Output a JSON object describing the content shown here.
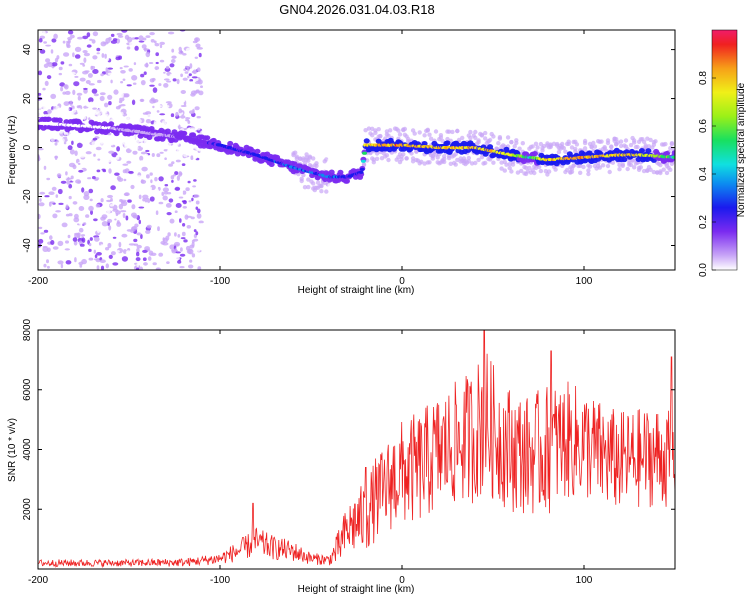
{
  "figure_title": "GN04.2026.031.04.03.R18",
  "chart_data": [
    {
      "type": "heatmap",
      "panel": "spectrogram",
      "xlabel": "Height of straight line (km)",
      "ylabel": "Frequency (Hz)",
      "xlim": [
        -200,
        150
      ],
      "ylim": [
        -50,
        48
      ],
      "x_ticks": [
        -200,
        -100,
        0,
        100
      ],
      "x_tick_labels": [
        "-200",
        "-100",
        "0",
        "100"
      ],
      "y_ticks": [
        -40,
        -20,
        0,
        20,
        40
      ],
      "y_tick_labels": [
        "-40",
        "-20",
        "0",
        "20",
        "40"
      ],
      "colorbar": {
        "label": "Normalized spectral amplitude",
        "range": [
          0.0,
          1.0
        ],
        "ticks": [
          0.0,
          0.2,
          0.4,
          0.6,
          0.8
        ],
        "tick_labels": [
          "0.0",
          "0.2",
          "0.4",
          "0.6",
          "0.8"
        ]
      },
      "ridge_track": {
        "x": [
          -200,
          -180,
          -160,
          -140,
          -120,
          -100,
          -80,
          -60,
          -40,
          -30,
          -22,
          -20,
          -10,
          0,
          20,
          40,
          60,
          70,
          80,
          100,
          120,
          130,
          150
        ],
        "frequency_hz": [
          10,
          9,
          8,
          6,
          4,
          1,
          -3,
          -8,
          -12,
          -12,
          -10,
          1,
          1,
          1,
          0,
          0,
          -3,
          -4,
          -5,
          -4,
          -3,
          -3,
          -4
        ],
        "amplitude": [
          0.05,
          0.05,
          0.06,
          0.1,
          0.2,
          0.3,
          0.35,
          0.4,
          0.4,
          0.35,
          0.3,
          0.9,
          0.95,
          0.95,
          0.9,
          0.9,
          0.85,
          0.6,
          0.9,
          0.95,
          0.9,
          0.85,
          0.6
        ]
      }
    },
    {
      "type": "line",
      "panel": "snr",
      "xlabel": "Height of straight line (km)",
      "ylabel": "SNR (10 * v/v)",
      "xlim": [
        -200,
        150
      ],
      "ylim": [
        0,
        8000
      ],
      "x_ticks": [
        -200,
        -100,
        0,
        100
      ],
      "x_tick_labels": [
        "-200",
        "-100",
        "0",
        "100"
      ],
      "y_ticks": [
        2000,
        4000,
        6000,
        8000
      ],
      "y_tick_labels": [
        "2000",
        "4000",
        "6000",
        "8000"
      ],
      "series": [
        {
          "name": "SNR",
          "color": "#ee2222",
          "envelope_x": [
            -200,
            -150,
            -120,
            -110,
            -100,
            -90,
            -80,
            -70,
            -60,
            -50,
            -40,
            -35,
            -30,
            -25,
            -20,
            -15,
            -10,
            -5,
            0,
            10,
            20,
            30,
            40,
            45,
            50,
            60,
            70,
            80,
            90,
            100,
            110,
            120,
            130,
            140,
            150
          ],
          "envelope_mean": [
            200,
            200,
            220,
            280,
            350,
            600,
            900,
            700,
            600,
            350,
            300,
            700,
            1300,
            1600,
            1700,
            2300,
            2600,
            3000,
            3200,
            3400,
            3900,
            4200,
            4500,
            5000,
            4600,
            4000,
            3800,
            4000,
            4300,
            4200,
            3800,
            3600,
            3700,
            3800,
            3600
          ],
          "envelope_spread": [
            120,
            120,
            140,
            160,
            200,
            350,
            500,
            400,
            350,
            200,
            180,
            600,
            900,
            1100,
            1200,
            1400,
            1500,
            1700,
            1800,
            1900,
            2000,
            2100,
            2300,
            2600,
            2300,
            2100,
            2000,
            2200,
            2000,
            1900,
            1800,
            1700,
            1700,
            1700,
            1600
          ],
          "peaks": [
            {
              "x": -82,
              "y": 2200
            },
            {
              "x": -20,
              "y": 3400
            },
            {
              "x": 45,
              "y": 8200
            },
            {
              "x": 82,
              "y": 7300
            },
            {
              "x": 148,
              "y": 7100
            }
          ]
        }
      ]
    }
  ]
}
